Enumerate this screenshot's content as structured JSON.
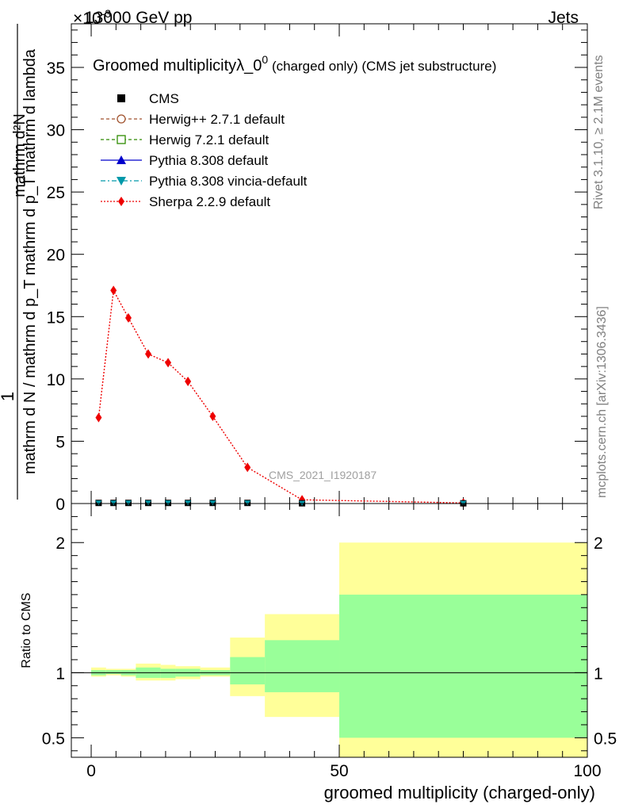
{
  "header": {
    "energy_label": "13000 GeV pp",
    "exponent_label": "×10",
    "exponent_power": "-3",
    "process_label": "Jets"
  },
  "side_labels": {
    "rivet": "Rivet 3.1.10, ≥ 2.1M events",
    "mcplots": "mcplots.cern.ch [arXiv:1306.3436]"
  },
  "watermark": "CMS_2021_I1920187",
  "chart_data": [
    {
      "type": "line",
      "title": "Groomed multiplicityλ_0⁰ (charged only) (CMS jet substructure)",
      "title_main": "Groomed multiplicityλ_0",
      "title_sup": "0",
      "title_tail": " (charged only) (CMS jet substructure)",
      "ylabel_numerator": "mathrm d²N",
      "ylabel_denominator": "mathrm d N / mathrm d p_T mathrm d p_T mathrm d lambda",
      "ylabel_prefix": "1",
      "xlim": [
        -4,
        100
      ],
      "ylim": [
        0,
        38.5
      ],
      "y_scale_factor": "1e-3",
      "yticks": [
        0,
        5,
        10,
        15,
        20,
        25,
        30,
        35
      ],
      "legend_position": "top-left",
      "legend": [
        {
          "name": "CMS",
          "color": "#000000",
          "marker": "square-filled",
          "line": "none"
        },
        {
          "name": "Herwig++ 2.7.1 default",
          "color": "#a0522d",
          "marker": "circle-open",
          "line": "dashed"
        },
        {
          "name": "Herwig 7.2.1 default",
          "color": "#2e8b00",
          "marker": "square-open",
          "line": "dashed"
        },
        {
          "name": "Pythia 8.308 default",
          "color": "#0000cc",
          "marker": "triangle-up-filled",
          "line": "solid"
        },
        {
          "name": "Pythia 8.308 vincia-default",
          "color": "#0099aa",
          "marker": "triangle-down-filled",
          "line": "dashdot"
        },
        {
          "name": "Sherpa 2.2.9 default",
          "color": "#ee0000",
          "marker": "diamond-filled",
          "line": "dotted"
        }
      ],
      "series": [
        {
          "name": "Sherpa 2.2.9 default",
          "x": [
            1.5,
            4.5,
            7.5,
            11.5,
            15.5,
            19.5,
            24.5,
            31.5,
            42.5,
            75.0
          ],
          "y": [
            6.9,
            17.1,
            14.9,
            12.0,
            11.3,
            9.8,
            7.0,
            2.9,
            0.3,
            0.05
          ]
        },
        {
          "name": "CMS",
          "x": [
            1.5,
            4.5,
            7.5,
            11.5,
            15.5,
            19.5,
            24.5,
            31.5,
            42.5,
            75.0
          ],
          "y": [
            0.05,
            0.05,
            0.05,
            0.05,
            0.05,
            0.05,
            0.05,
            0.05,
            0.02,
            0.02
          ]
        }
      ]
    },
    {
      "type": "area",
      "ylabel": "Ratio to CMS",
      "xlabel": "groomed multiplicity (charged-only)",
      "xlim": [
        -4,
        100
      ],
      "ylim": [
        0.35,
        2.3
      ],
      "xticks": [
        0,
        50,
        100
      ],
      "yticks": [
        0.5,
        1,
        2
      ],
      "bands": [
        {
          "x0": 0,
          "x1": 3,
          "inner": [
            0.98,
            1.02
          ],
          "outer": [
            0.97,
            1.04
          ]
        },
        {
          "x0": 3,
          "x1": 6,
          "inner": [
            0.99,
            1.02
          ],
          "outer": [
            0.98,
            1.03
          ]
        },
        {
          "x0": 6,
          "x1": 9,
          "inner": [
            0.98,
            1.02
          ],
          "outer": [
            0.97,
            1.03
          ]
        },
        {
          "x0": 9,
          "x1": 14,
          "inner": [
            0.96,
            1.04
          ],
          "outer": [
            0.94,
            1.07
          ]
        },
        {
          "x0": 14,
          "x1": 17,
          "inner": [
            0.96,
            1.03
          ],
          "outer": [
            0.94,
            1.06
          ]
        },
        {
          "x0": 17,
          "x1": 22,
          "inner": [
            0.97,
            1.03
          ],
          "outer": [
            0.95,
            1.05
          ]
        },
        {
          "x0": 22,
          "x1": 28,
          "inner": [
            0.98,
            1.02
          ],
          "outer": [
            0.97,
            1.04
          ]
        },
        {
          "x0": 28,
          "x1": 35,
          "inner": [
            0.91,
            1.12
          ],
          "outer": [
            0.82,
            1.27
          ]
        },
        {
          "x0": 35,
          "x1": 50,
          "inner": [
            0.85,
            1.25
          ],
          "outer": [
            0.66,
            1.45
          ]
        },
        {
          "x0": 50,
          "x1": 100,
          "inner": [
            0.5,
            1.6
          ],
          "outer": [
            0.35,
            2.0
          ]
        }
      ],
      "band_colors": {
        "inner": "#99ff99",
        "outer": "#ffff99"
      }
    }
  ]
}
